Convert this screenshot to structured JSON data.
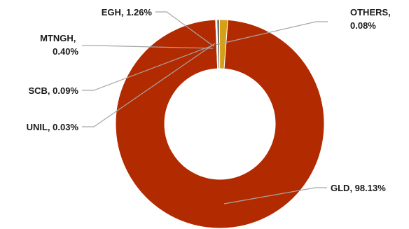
{
  "chart_data": {
    "type": "pie",
    "variant": "doughnut",
    "slices": [
      {
        "label": "GLD",
        "value": 98.13,
        "display": "GLD, 98.13%",
        "color": "#B22A00"
      },
      {
        "label": "EGH",
        "value": 1.26,
        "display": "EGH, 1.26%",
        "color": "#D4A017"
      },
      {
        "label": "MTNGH",
        "value": 0.4,
        "display_lines": [
          "MTNGH,",
          "0.40%"
        ],
        "color": "#6F6F6F"
      },
      {
        "label": "SCB",
        "value": 0.09,
        "display": "SCB, 0.09%",
        "color": "#3B6EC4"
      },
      {
        "label": "UNIL",
        "value": 0.03,
        "display": "UNIL, 0.03%",
        "color": "#4F9A3A"
      },
      {
        "label": "OTHERS",
        "value": 0.08,
        "display_lines": [
          "OTHERS,",
          "0.08%"
        ],
        "color": "#264478"
      }
    ],
    "legend": "none",
    "data_labels": "outside with leader lines"
  }
}
